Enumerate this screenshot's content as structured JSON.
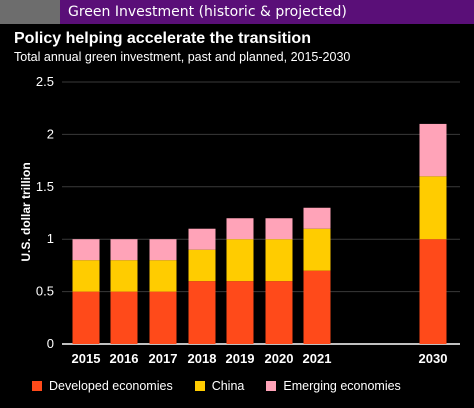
{
  "header": {
    "title": "Green Investment (historic & projected)"
  },
  "chart_data": {
    "type": "bar",
    "stacked": true,
    "title": "Policy helping accelerate the transition",
    "subtitle": "Total annual green investment, past and planned, 2015-2030",
    "xlabel": "",
    "ylabel": "U.S. dollar trillion",
    "ylim": [
      0,
      2.5
    ],
    "yticks": [
      "0",
      "0.5",
      "1",
      "1.5",
      "2",
      "2.5"
    ],
    "categories": [
      "2015",
      "2016",
      "2017",
      "2018",
      "2019",
      "2020",
      "2021",
      "2030"
    ],
    "series": [
      {
        "name": "Developed economies",
        "color": "#ff4a1a",
        "values": [
          0.5,
          0.5,
          0.5,
          0.6,
          0.6,
          0.6,
          0.7,
          1.0
        ]
      },
      {
        "name": "China",
        "color": "#ffcc00",
        "values": [
          0.3,
          0.3,
          0.3,
          0.3,
          0.4,
          0.4,
          0.4,
          0.6
        ]
      },
      {
        "name": "Emerging economies",
        "color": "#ffa3b8",
        "values": [
          0.2,
          0.2,
          0.2,
          0.2,
          0.2,
          0.2,
          0.2,
          0.5
        ]
      }
    ],
    "grid": true,
    "legend_position": "bottom"
  }
}
